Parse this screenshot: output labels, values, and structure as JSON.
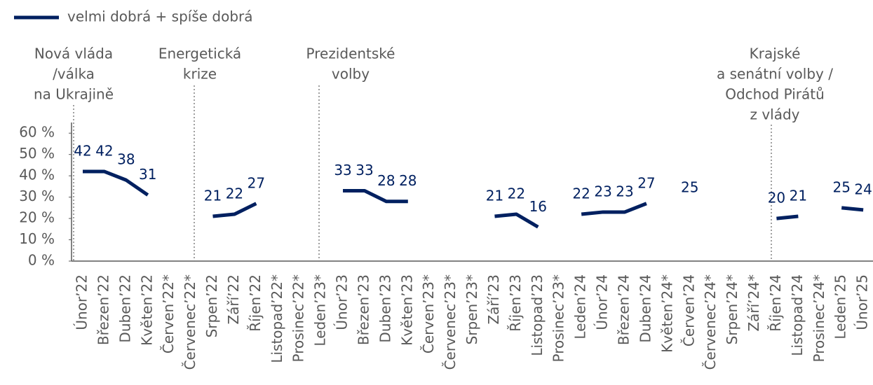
{
  "chart_data": {
    "type": "line",
    "categories": [
      "Únor’22",
      "Březen’22",
      "Duben’22",
      "Květen’22",
      "Červen’22*",
      "Červenec’22*",
      "Srpen’22",
      "Září’22",
      "Říjen’22",
      "Listopad’22*",
      "Prosinec’22*",
      "Leden’23*",
      "Únor’23",
      "Březen’23",
      "Duben’23",
      "Květen’23",
      "Červen’23*",
      "Červenec’23*",
      "Srpen’23*",
      "Září’23",
      "Říjen’23",
      "Listopad’23",
      "Prosinec’23*",
      "Leden’24",
      "Únor’24",
      "Březen’24",
      "Duben’24",
      "Květen’24*",
      "Červen’24",
      "Červenec’24*",
      "Srpen’24*",
      "Září’24*",
      "Říjen’24",
      "Listopad’24",
      "Prosinec’24*",
      "Leden’25",
      "Únor’25"
    ],
    "series": [
      {
        "name": "velmi dobrá + spíše dobrá",
        "color": "#002060",
        "values": [
          42,
          42,
          38,
          31,
          null,
          null,
          21,
          22,
          27,
          null,
          null,
          null,
          33,
          33,
          28,
          28,
          null,
          null,
          null,
          21,
          22,
          16,
          null,
          22,
          23,
          23,
          27,
          null,
          25,
          null,
          null,
          null,
          20,
          21,
          null,
          25,
          24
        ]
      }
    ],
    "ylim": [
      0,
      65
    ],
    "yticks": [
      {
        "value": 0,
        "label": "0 %"
      },
      {
        "value": 10,
        "label": "10 %"
      },
      {
        "value": 20,
        "label": "20 %"
      },
      {
        "value": 30,
        "label": "30 %"
      },
      {
        "value": 40,
        "label": "40 %"
      },
      {
        "value": 50,
        "label": "50 %"
      },
      {
        "value": 60,
        "label": "60 %"
      }
    ],
    "annotations": [
      [
        "Nová vláda",
        "/válka",
        "na Ukrajině"
      ],
      [
        "Energetická",
        "krize"
      ],
      [
        "Prezidentské",
        "volby"
      ],
      [
        "Krajské",
        "a senátní volby /",
        "Odchod Pirátů",
        "z vlády"
      ]
    ],
    "grid": false,
    "legend": "top-left"
  }
}
